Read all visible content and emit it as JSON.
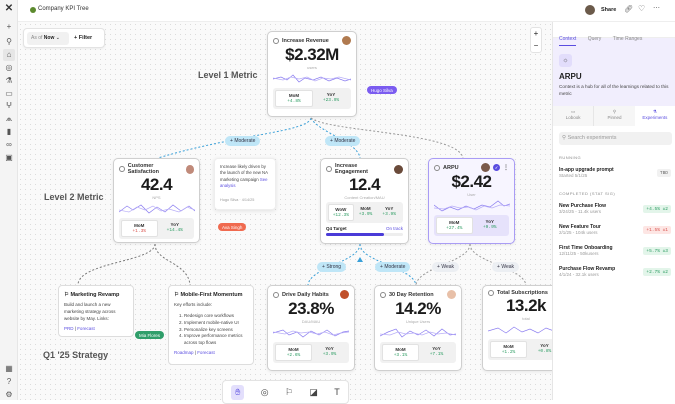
{
  "app": {
    "title": "Company KPI Tree",
    "share": "Share"
  },
  "toolbar": {
    "as_of_label": "As of",
    "as_of_value": "Now",
    "filter": "Filter",
    "zoom_in": "+",
    "zoom_out": "−"
  },
  "labels": {
    "level1": "Level 1 Metric",
    "level2": "Level 2 Metric",
    "strategy": "Q1 '25 Strategy"
  },
  "metrics": {
    "revenue": {
      "title": "Increase Revenue",
      "value": "$2.32M",
      "unit": "users",
      "stats": [
        {
          "label": "MoM",
          "value": "+4.8%",
          "trend": "up"
        },
        {
          "label": "YoY",
          "value": "+23.9%",
          "trend": "up"
        }
      ]
    },
    "csat": {
      "title": "Customer Satisfaction",
      "value": "42.4",
      "unit": "NPS",
      "stats": [
        {
          "label": "MoM",
          "value": "+1.3%",
          "trend": "down"
        },
        {
          "label": "YoY",
          "value": "+14.4%",
          "trend": "up"
        }
      ]
    },
    "engagement": {
      "title": "Increase Engagement",
      "value": "12.4",
      "unit": "Content Creation/MAU",
      "stats": [
        {
          "label": "WoW",
          "value": "+12.3%"
        },
        {
          "label": "MoM",
          "value": "+3.9%"
        },
        {
          "label": "YoY",
          "value": "+3.9%"
        }
      ],
      "target_label": "Q4 Target",
      "target_status": "On track",
      "target_progress": 0.75
    },
    "arpu": {
      "title": "ARPU",
      "value": "$2.42",
      "unit": "User",
      "stats": [
        {
          "label": "MoM",
          "value": "+27.4%"
        },
        {
          "label": "YoY",
          "value": "+9.9%"
        }
      ]
    },
    "habits": {
      "title": "Drive Daily Habits",
      "value": "23.8%",
      "unit": "DAU/MAU",
      "stats": [
        {
          "label": "MoM",
          "value": "+2.6%"
        },
        {
          "label": "YoY",
          "value": "+3.9%"
        }
      ]
    },
    "retention": {
      "title": "30 Day Retention",
      "value": "14.2%",
      "unit": "Unique Users",
      "stats": [
        {
          "label": "MoM",
          "value": "+3.1%"
        },
        {
          "label": "YoY",
          "value": "+7.1%"
        }
      ]
    },
    "subs": {
      "title": "Total Subscriptions",
      "value": "13.2k",
      "unit": "total",
      "stats": [
        {
          "label": "MoM",
          "value": "+1.2%"
        },
        {
          "label": "YoY",
          "value": "+0.8%"
        }
      ]
    }
  },
  "edges": {
    "e1": "Moderate",
    "e2": "Moderate",
    "e3": "Strong",
    "e4": "Moderate",
    "e5": "Weak",
    "e6": "Weak"
  },
  "note": {
    "text": "Increase likely driven by the launch of the new NA marketing campaign",
    "link": "See analysis",
    "author": "Hugo Silva · 4/14/25"
  },
  "cursors": {
    "hugo": "Hugo Silva",
    "ava": "Ava Singh",
    "mia": "Mia Flores"
  },
  "strategies": [
    {
      "title": "Marketing Revamp",
      "body": "Build and launch a new marketing strategy across website by May. Links:",
      "links": [
        "PRD",
        "Forecast"
      ]
    },
    {
      "title": "Mobile-First Momentum",
      "body": "Key efforts include:",
      "list": [
        "Redesign core workflows",
        "Implement mobile-native UI",
        "Personalize key screens",
        "Improve performance metrics across top flows"
      ],
      "links": [
        "Roadmap",
        "Forecast"
      ]
    }
  ],
  "panel": {
    "tabs": [
      "Context",
      "Query",
      "Time Ranges"
    ],
    "title": "ARPU",
    "description": "Context is a hub for all of the learnings related to this metric",
    "subtabs": [
      "Lobook",
      "Pinned",
      "Experiments"
    ],
    "search_placeholder": "Search experiments",
    "running_label": "RUNNING",
    "running": [
      {
        "name": "In-app upgrade prompt",
        "meta": "Started 5/1/25",
        "result": "TBD"
      }
    ],
    "completed_label": "COMPLETED (STAT SIG)",
    "completed": [
      {
        "name": "New Purchase Flow",
        "meta": "3/24/25 - 11.4k users",
        "result": "+4.5% ±2",
        "status": "positive"
      },
      {
        "name": "New Feature Tour",
        "meta": "2/1/25 - 104k users",
        "result": "+1.5% ±1",
        "status": "negative"
      },
      {
        "name": "First Time Onboarding",
        "meta": "12/11/25 - 50kusers",
        "result": "+5.7% ±3",
        "status": "positive"
      },
      {
        "name": "Purchase Flow Revamp",
        "meta": "4/1/24 - 32.1k users",
        "result": "+2.7% ±2",
        "status": "positive"
      }
    ]
  },
  "colors": {
    "accent": "#6c5ce7",
    "positive": "#2c9c62",
    "negative": "#d9544f",
    "edge_strong": "#bfe6f7"
  }
}
